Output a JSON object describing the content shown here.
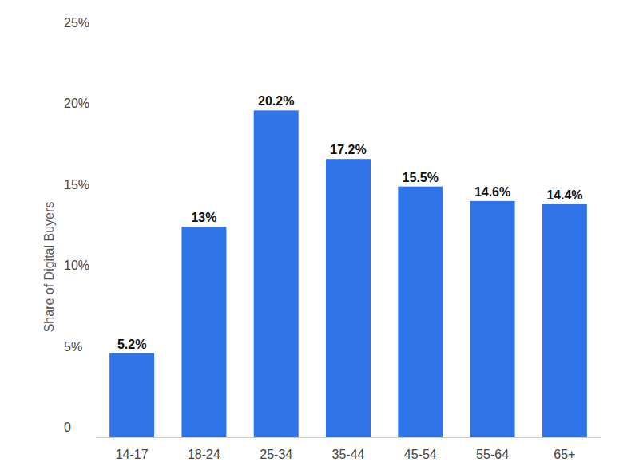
{
  "chart_data": {
    "type": "bar",
    "y_label": "Share of Digital Buyers",
    "categories": [
      "14-17",
      "18-24",
      "25-34",
      "35-44",
      "45-54",
      "55-64",
      "65+"
    ],
    "values": [
      5.2,
      13,
      20.2,
      17.2,
      15.5,
      14.6,
      14.4
    ],
    "value_labels": [
      "5.2%",
      "13%",
      "20.2%",
      "17.2%",
      "15.5%",
      "14.6%",
      "14.4%"
    ],
    "color": "#2f74e8",
    "ylim": [
      0,
      25
    ],
    "yticks": [
      0,
      {
        "value": 5,
        "label": "5%"
      },
      {
        "value": 10,
        "label": "10%"
      },
      {
        "value": 15,
        "label": "15%"
      },
      {
        "value": 20,
        "label": "20%"
      },
      {
        "value": 25,
        "label": "25%"
      }
    ],
    "grid": false,
    "data_labels": true
  }
}
